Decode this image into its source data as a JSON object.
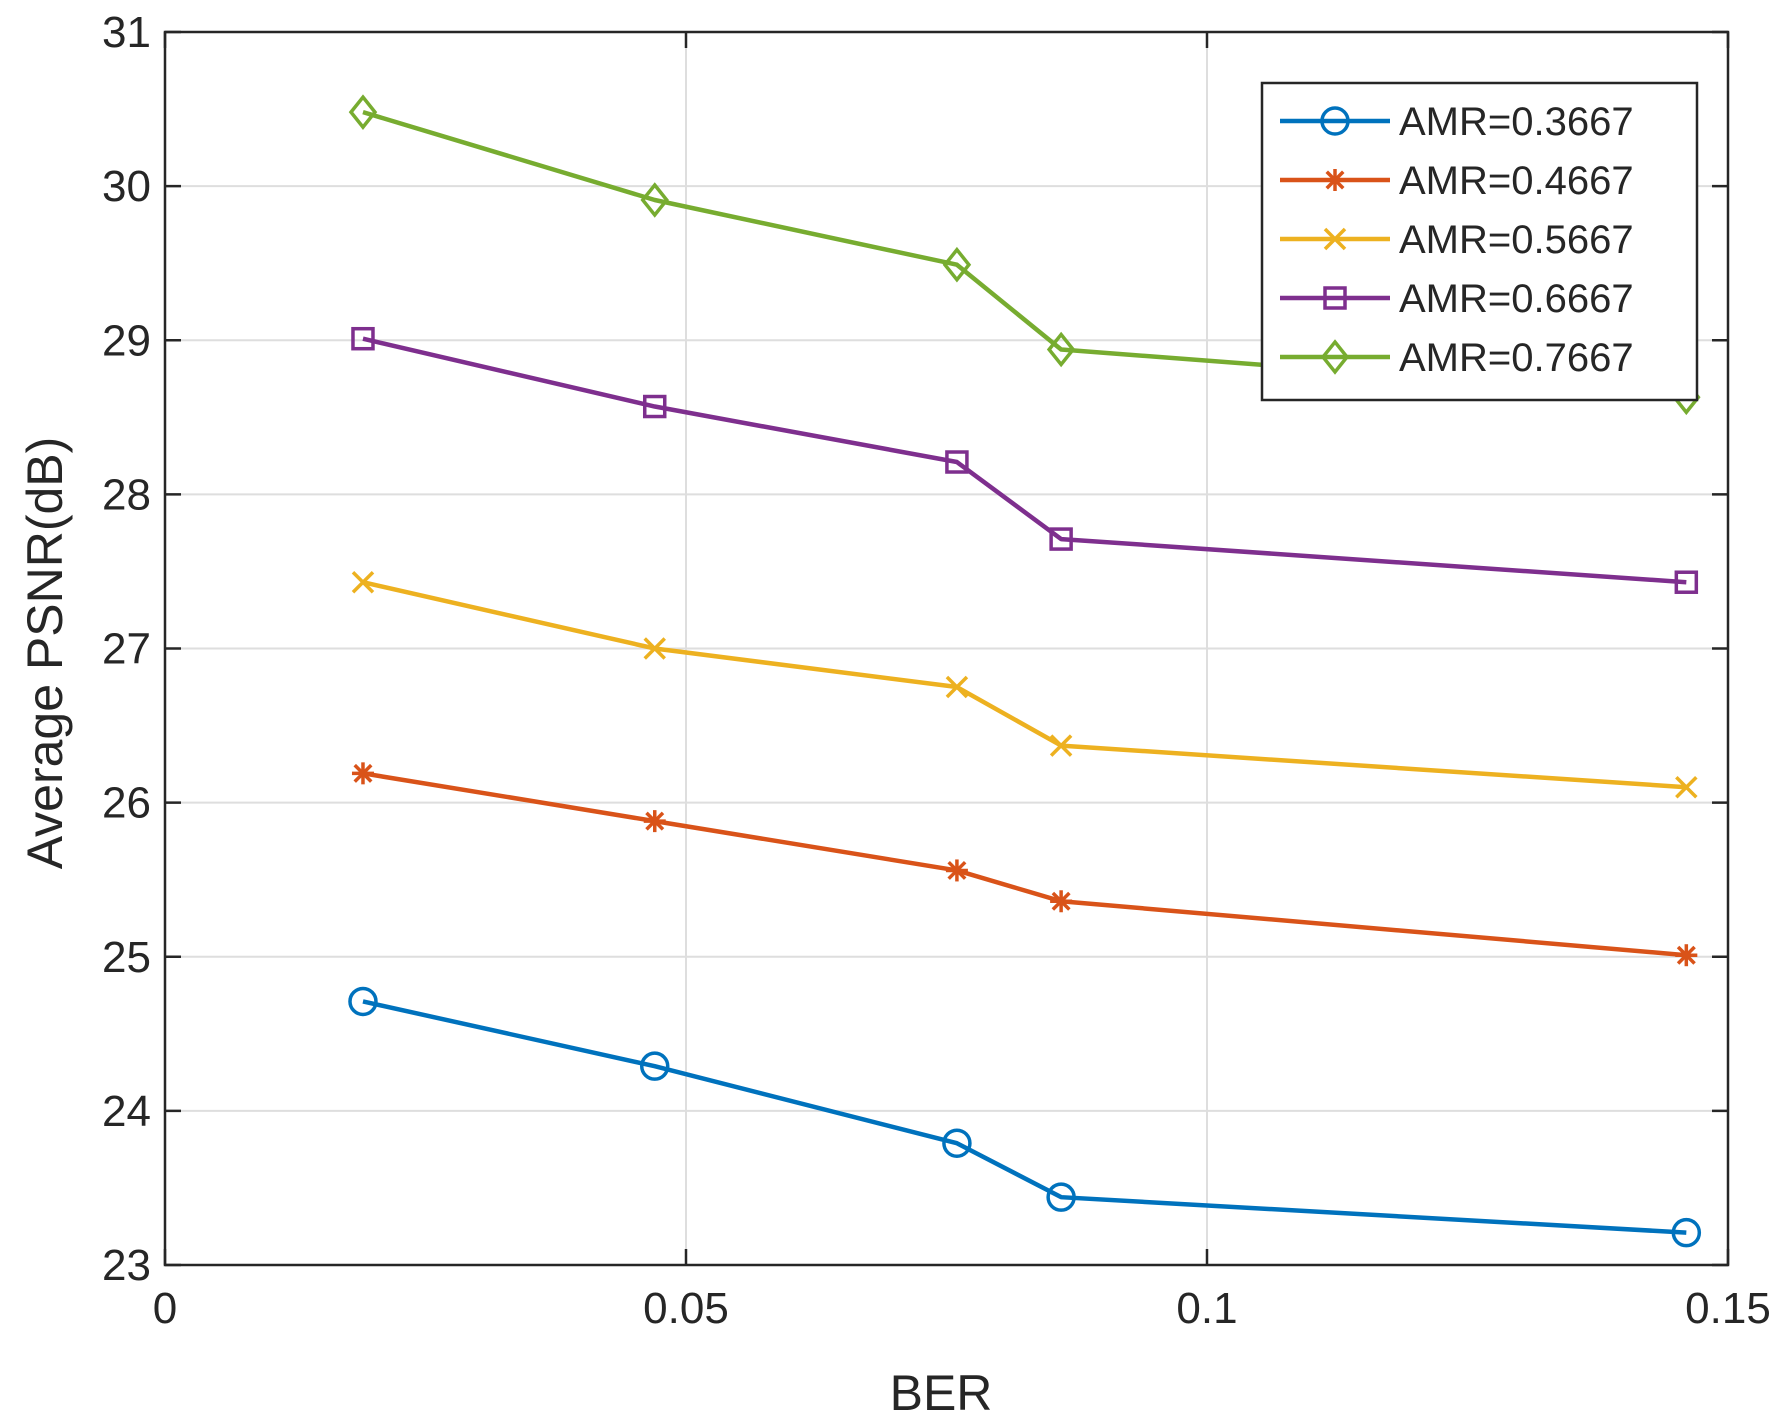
{
  "chart_data": {
    "type": "line",
    "title": "",
    "xlabel": "BER",
    "ylabel": "Average PSNR(dB)",
    "xlim": [
      0,
      0.15
    ],
    "ylim": [
      23,
      31
    ],
    "xticks": [
      0,
      0.05,
      0.1,
      0.15
    ],
    "xtick_labels": [
      "0",
      "0.05",
      "0.1",
      "0.15"
    ],
    "yticks": [
      23,
      24,
      25,
      26,
      27,
      28,
      29,
      30,
      31
    ],
    "ytick_labels": [
      "23",
      "24",
      "25",
      "26",
      "27",
      "28",
      "29",
      "30",
      "31"
    ],
    "grid": true,
    "legend_position": "top-right",
    "x": [
      0.019,
      0.047,
      0.076,
      0.086,
      0.146
    ],
    "series": [
      {
        "name": "AMR=0.3667",
        "marker": "circle",
        "color": "#0072BD",
        "values": [
          24.71,
          24.29,
          23.79,
          23.44,
          23.21
        ]
      },
      {
        "name": "AMR=0.4667",
        "marker": "asterisk",
        "color": "#D95319",
        "values": [
          26.19,
          25.88,
          25.56,
          25.36,
          25.01
        ]
      },
      {
        "name": "AMR=0.5667",
        "marker": "x",
        "color": "#EDB120",
        "values": [
          27.43,
          27.0,
          26.75,
          26.37,
          26.1
        ]
      },
      {
        "name": "AMR=0.6667",
        "marker": "square",
        "color": "#7E2F8E",
        "values": [
          29.01,
          28.57,
          28.21,
          27.71,
          27.43
        ]
      },
      {
        "name": "AMR=0.7667",
        "marker": "diamond",
        "color": "#77AC30",
        "values": [
          30.48,
          29.91,
          29.49,
          28.94,
          28.63
        ]
      }
    ]
  }
}
